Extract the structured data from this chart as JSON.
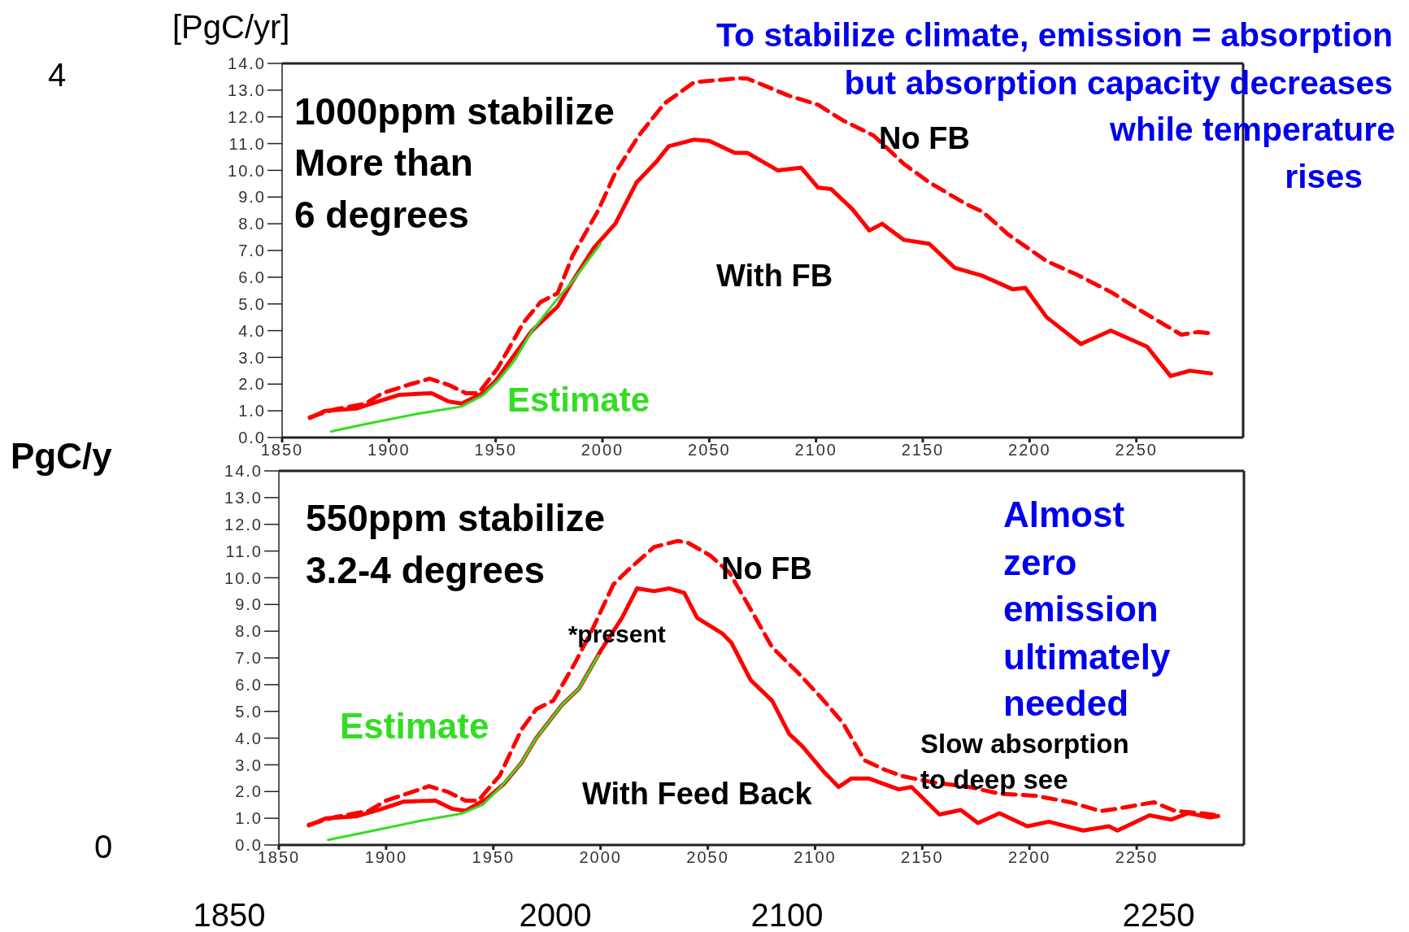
{
  "chart_data": [
    {
      "type": "line",
      "ylabel": "[PgC/yr]",
      "xlim": [
        1850,
        2300
      ],
      "ylim": [
        0,
        14
      ],
      "xticks": [
        1850,
        1900,
        1950,
        2000,
        2050,
        2100,
        2150,
        2200,
        2250
      ],
      "yticks": [
        {
          "value": 0,
          "label": "0.0"
        },
        {
          "value": 1,
          "label": "1.0"
        },
        {
          "value": 2,
          "label": "2.0"
        },
        {
          "value": 3,
          "label": "3.0"
        },
        {
          "value": 4,
          "label": "4.0"
        },
        {
          "value": 5,
          "label": "5.0"
        },
        {
          "value": 6,
          "label": "6.0"
        },
        {
          "value": 7,
          "label": "7.0"
        },
        {
          "value": 8,
          "label": "8.0"
        },
        {
          "value": 9,
          "label": "9.0"
        },
        {
          "value": 10,
          "label": "10.0"
        },
        {
          "value": 11,
          "label": "11.0"
        },
        {
          "value": 12,
          "label": "12.0"
        },
        {
          "value": 13,
          "label": "13.0"
        },
        {
          "value": 14,
          "label": "14.0"
        }
      ],
      "marker": "none",
      "annotations": [
        "1000ppm stabilize",
        "More than",
        "6 degrees",
        "To stabilize climate, emission = absorption",
        "but absorption capacity decreases",
        "while temperature",
        "rises",
        "4"
      ],
      "series": [
        {
          "name": "No FB",
          "color": "#ff0000",
          "line_style": "dashed",
          "x": [
            1863,
            1874,
            1889,
            1897,
            1909,
            1919,
            1928,
            1936,
            1942,
            1951,
            1963,
            1971,
            1979,
            1986,
            1998,
            2006,
            2017,
            2029,
            2043,
            2064,
            2068,
            2087,
            2101,
            2113,
            2127,
            2141,
            2153,
            2170,
            2178,
            2190,
            2208,
            2222,
            2238,
            2252,
            2271,
            2279,
            2285
          ],
          "values": [
            0.76,
            1.04,
            1.27,
            1.66,
            1.97,
            2.2,
            1.97,
            1.66,
            1.66,
            2.6,
            4.3,
            5.07,
            5.4,
            6.8,
            8.5,
            9.9,
            11.3,
            12.5,
            13.3,
            13.45,
            13.43,
            12.8,
            12.45,
            11.85,
            11.3,
            10.25,
            9.55,
            8.75,
            8.45,
            7.6,
            6.6,
            6.1,
            5.45,
            4.75,
            3.85,
            3.95,
            3.9
          ]
        },
        {
          "name": "With FB",
          "color": "#ff0000",
          "line_style": "solid",
          "x": [
            1863,
            1870,
            1885,
            1895,
            1905,
            1920,
            1928,
            1934,
            1944,
            1950,
            1957,
            1967,
            1979,
            1986,
            1996,
            2006,
            2016,
            2025,
            2031,
            2043,
            2050,
            2062,
            2068,
            2082,
            2093,
            2101,
            2107,
            2117,
            2125,
            2131,
            2141,
            2153,
            2165,
            2178,
            2192,
            2198,
            2208,
            2224,
            2238,
            2255,
            2266,
            2275,
            2285
          ],
          "values": [
            0.73,
            1.0,
            1.09,
            1.35,
            1.6,
            1.66,
            1.35,
            1.27,
            1.66,
            2.12,
            2.9,
            4.0,
            4.9,
            5.85,
            7.1,
            8.0,
            9.55,
            10.3,
            10.9,
            11.15,
            11.1,
            10.65,
            10.65,
            10.0,
            10.1,
            9.35,
            9.3,
            8.55,
            7.75,
            8.0,
            7.4,
            7.25,
            6.35,
            6.05,
            5.55,
            5.6,
            4.5,
            3.5,
            4.0,
            3.4,
            2.3,
            2.5,
            2.4
          ]
        },
        {
          "name": "Estimate",
          "color": "#33dd22",
          "line_style": "solid",
          "x": [
            1873,
            1889,
            1913,
            1934,
            1944,
            1951,
            1959,
            1967,
            1979,
            1986,
            1999
          ],
          "values": [
            0.23,
            0.5,
            0.88,
            1.16,
            1.58,
            2.12,
            2.9,
            4.0,
            5.2,
            5.85,
            7.24
          ]
        }
      ]
    },
    {
      "type": "line",
      "ylabel": "PgC/y",
      "xlim": [
        1850,
        2300
      ],
      "ylim": [
        0,
        14
      ],
      "xticks": [
        1850,
        1900,
        1950,
        2000,
        2050,
        2100,
        2150,
        2200,
        2250
      ],
      "yticks": [
        {
          "value": 0,
          "label": "0.0"
        },
        {
          "value": 1,
          "label": "1.0"
        },
        {
          "value": 2,
          "label": "2.0"
        },
        {
          "value": 3,
          "label": "3.0"
        },
        {
          "value": 4,
          "label": "4.0"
        },
        {
          "value": 5,
          "label": "5.0"
        },
        {
          "value": 6,
          "label": "6.0"
        },
        {
          "value": 7,
          "label": "7.0"
        },
        {
          "value": 8,
          "label": "8.0"
        },
        {
          "value": 9,
          "label": "9.0"
        },
        {
          "value": 10,
          "label": "10.0"
        },
        {
          "value": 11,
          "label": "11.0"
        },
        {
          "value": 12,
          "label": "12.0"
        },
        {
          "value": 13,
          "label": "13.0"
        },
        {
          "value": 14,
          "label": "14.0"
        }
      ],
      "marker": "none",
      "annotations": [
        "550ppm stabilize",
        "3.2-4 degrees",
        {
          "text": "*present",
          "x": 2000,
          "y": 7.2
        },
        "Slow absorption",
        "to deep see",
        "Almost",
        "zero",
        "emission",
        "ultimately",
        "needed",
        "0",
        "1850",
        "2000",
        "2100",
        "2250"
      ],
      "series": [
        {
          "name": "No FB",
          "color": "#ff0000",
          "line_style": "dashed",
          "x": [
            1864,
            1876,
            1892,
            1900,
            1912,
            1920,
            1929,
            1937,
            1943,
            1953,
            1963,
            1970,
            1978,
            1988,
            1996,
            2006,
            2013,
            2025,
            2036,
            2041,
            2051,
            2060,
            2068,
            2080,
            2092,
            2103,
            2113,
            2123,
            2133,
            2141,
            2156,
            2172,
            2186,
            2203,
            2219,
            2233,
            2241,
            2258,
            2268,
            2280,
            2288
          ],
          "values": [
            0.76,
            1.04,
            1.28,
            1.66,
            1.98,
            2.2,
            1.98,
            1.66,
            1.66,
            2.6,
            4.3,
            5.08,
            5.4,
            6.8,
            8.04,
            9.75,
            10.3,
            11.15,
            11.38,
            11.3,
            10.84,
            10.2,
            9.1,
            7.4,
            6.45,
            5.5,
            4.57,
            3.17,
            2.8,
            2.57,
            2.33,
            2.17,
            1.92,
            1.84,
            1.6,
            1.27,
            1.36,
            1.6,
            1.27,
            1.19,
            1.11
          ]
        },
        {
          "name": "With Feed Back",
          "color": "#ff0000",
          "line_style": "solid",
          "x": [
            1864,
            1872,
            1886,
            1898,
            1908,
            1923,
            1931,
            1937,
            1947,
            1955,
            1963,
            1970,
            1982,
            1990,
            2000,
            2010,
            2017,
            2025,
            2032,
            2039,
            2045,
            2057,
            2061,
            2070,
            2080,
            2088,
            2094,
            2104,
            2111,
            2117,
            2125,
            2139,
            2145,
            2158,
            2168,
            2176,
            2186,
            2199,
            2209,
            2225,
            2237,
            2241,
            2256,
            2266,
            2274,
            2284,
            2288
          ],
          "values": [
            0.73,
            1.0,
            1.07,
            1.35,
            1.62,
            1.66,
            1.35,
            1.28,
            1.74,
            2.29,
            3.06,
            4.0,
            5.24,
            5.86,
            7.26,
            8.5,
            9.6,
            9.5,
            9.6,
            9.44,
            8.5,
            7.9,
            7.57,
            6.17,
            5.4,
            4.15,
            3.7,
            2.75,
            2.17,
            2.49,
            2.49,
            2.08,
            2.17,
            1.14,
            1.31,
            0.82,
            1.19,
            0.7,
            0.87,
            0.54,
            0.7,
            0.54,
            1.11,
            0.95,
            1.19,
            1.03,
            1.08
          ]
        },
        {
          "name": "Estimate",
          "color": "#33dd22",
          "line_style": "solid",
          "x": [
            1873,
            1892,
            1915,
            1935,
            1945,
            1953,
            1963,
            1970,
            1982,
            1990,
            1999
          ],
          "values": [
            0.19,
            0.5,
            0.89,
            1.17,
            1.5,
            2.13,
            3.06,
            4.0,
            5.24,
            5.86,
            7.1
          ]
        }
      ]
    }
  ]
}
